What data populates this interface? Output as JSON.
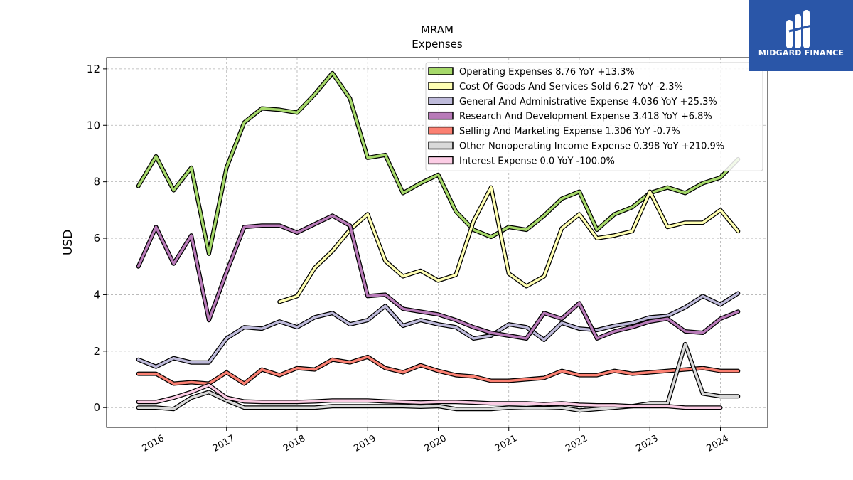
{
  "chart_data": {
    "type": "line",
    "title": "MRAM",
    "subtitle": "Expenses",
    "ylabel": "USD",
    "xlabel": "",
    "ylim": [
      -0.7,
      12.4
    ],
    "xlim": [
      2015.3,
      2024.67
    ],
    "yticks": [
      0,
      2,
      4,
      6,
      8,
      10,
      12
    ],
    "xticks": [
      "2016",
      "2017",
      "2018",
      "2019",
      "2020",
      "2021",
      "2022",
      "2023",
      "2024"
    ],
    "grid": true,
    "legend_position": "top-right",
    "series": [
      {
        "name": "Operating Expenses  8.76 YoY +13.3%",
        "color": "#a6d96a",
        "x": [
          2015.75,
          2016.0,
          2016.25,
          2016.5,
          2016.75,
          2017.0,
          2017.25,
          2017.5,
          2017.75,
          2018.0,
          2018.25,
          2018.5,
          2018.75,
          2019.0,
          2019.25,
          2019.5,
          2019.75,
          2020.0,
          2020.25,
          2020.5,
          2020.75,
          2021.0,
          2021.25,
          2021.5,
          2021.75,
          2022.0,
          2022.25,
          2022.5,
          2022.75,
          2023.0,
          2023.25,
          2023.5,
          2023.75,
          2024.0,
          2024.25
        ],
        "values": [
          7.85,
          8.9,
          7.7,
          8.5,
          5.45,
          8.5,
          10.1,
          10.6,
          10.55,
          10.45,
          11.1,
          11.85,
          10.95,
          8.85,
          8.95,
          7.6,
          7.95,
          8.25,
          6.95,
          6.3,
          6.05,
          6.4,
          6.3,
          6.8,
          7.4,
          7.65,
          6.3,
          6.85,
          7.1,
          7.6,
          7.8,
          7.6,
          7.95,
          8.15,
          8.8
        ]
      },
      {
        "name": "Cost Of Goods And Services Sold  6.27 YoY -2.3%",
        "color": "#ffffb3",
        "x": [
          2017.75,
          2018.0,
          2018.25,
          2018.5,
          2018.75,
          2019.0,
          2019.25,
          2019.5,
          2019.75,
          2020.0,
          2020.25,
          2020.5,
          2020.75,
          2021.0,
          2021.25,
          2021.5,
          2021.75,
          2022.0,
          2022.25,
          2022.5,
          2022.75,
          2023.0,
          2023.25,
          2023.5,
          2023.75,
          2024.0,
          2024.25
        ],
        "values": [
          3.75,
          3.95,
          4.95,
          5.55,
          6.3,
          6.85,
          5.2,
          4.65,
          4.85,
          4.5,
          4.7,
          6.6,
          7.8,
          4.75,
          4.3,
          4.65,
          6.35,
          6.85,
          6.0,
          6.1,
          6.25,
          7.65,
          6.4,
          6.55,
          6.55,
          7.0,
          6.25
        ]
      },
      {
        "name": "General And Administrative Expense  4.036 YoY +25.3%",
        "color": "#bebada",
        "x": [
          2015.75,
          2016.0,
          2016.25,
          2016.5,
          2016.75,
          2017.0,
          2017.25,
          2017.5,
          2017.75,
          2018.0,
          2018.25,
          2018.5,
          2018.75,
          2019.0,
          2019.25,
          2019.5,
          2019.75,
          2020.0,
          2020.25,
          2020.5,
          2020.75,
          2021.0,
          2021.25,
          2021.5,
          2021.75,
          2022.0,
          2022.25,
          2022.5,
          2022.75,
          2023.0,
          2023.25,
          2023.5,
          2023.75,
          2024.0,
          2024.25
        ],
        "values": [
          1.7,
          1.45,
          1.75,
          1.6,
          1.6,
          2.45,
          2.85,
          2.8,
          3.05,
          2.85,
          3.2,
          3.35,
          2.95,
          3.1,
          3.6,
          2.9,
          3.1,
          2.95,
          2.85,
          2.45,
          2.55,
          2.95,
          2.85,
          2.4,
          3.0,
          2.8,
          2.75,
          2.9,
          3.0,
          3.2,
          3.25,
          3.55,
          3.95,
          3.65,
          4.05
        ]
      },
      {
        "name": "Research And Development Expense  3.418 YoY +6.8%",
        "color": "#b87ab8",
        "x": [
          2015.75,
          2016.0,
          2016.25,
          2016.5,
          2016.75,
          2017.0,
          2017.25,
          2017.5,
          2017.75,
          2018.0,
          2018.25,
          2018.5,
          2018.75,
          2019.0,
          2019.25,
          2019.5,
          2019.75,
          2020.0,
          2020.25,
          2020.5,
          2020.75,
          2021.0,
          2021.25,
          2021.5,
          2021.75,
          2022.0,
          2022.25,
          2022.5,
          2022.75,
          2023.0,
          2023.25,
          2023.5,
          2023.75,
          2024.0,
          2024.25
        ],
        "values": [
          5.0,
          6.4,
          5.1,
          6.1,
          3.1,
          4.8,
          6.4,
          6.45,
          6.45,
          6.2,
          6.5,
          6.8,
          6.45,
          3.95,
          4.0,
          3.5,
          3.4,
          3.3,
          3.1,
          2.85,
          2.65,
          2.55,
          2.45,
          3.35,
          3.15,
          3.7,
          2.45,
          2.7,
          2.85,
          3.05,
          3.15,
          2.7,
          2.65,
          3.15,
          3.4
        ]
      },
      {
        "name": "Selling And Marketing Expense  1.306 YoY -0.7%",
        "color": "#fb8072",
        "x": [
          2015.75,
          2016.0,
          2016.25,
          2016.5,
          2016.75,
          2017.0,
          2017.25,
          2017.5,
          2017.75,
          2018.0,
          2018.25,
          2018.5,
          2018.75,
          2019.0,
          2019.25,
          2019.5,
          2019.75,
          2020.0,
          2020.25,
          2020.5,
          2020.75,
          2021.0,
          2021.25,
          2021.5,
          2021.75,
          2022.0,
          2022.25,
          2022.5,
          2022.75,
          2023.0,
          2023.25,
          2023.5,
          2023.75,
          2024.0,
          2024.25
        ],
        "values": [
          1.2,
          1.2,
          0.85,
          0.9,
          0.85,
          1.25,
          0.85,
          1.35,
          1.15,
          1.4,
          1.35,
          1.7,
          1.6,
          1.8,
          1.4,
          1.25,
          1.5,
          1.3,
          1.15,
          1.1,
          0.95,
          0.95,
          1.0,
          1.05,
          1.3,
          1.15,
          1.15,
          1.3,
          1.2,
          1.25,
          1.3,
          1.35,
          1.4,
          1.3,
          1.3
        ]
      },
      {
        "name": "Other Nonoperating Income Expense  0.398 YoY +210.9%",
        "color": "#d9d9d9",
        "x": [
          2015.75,
          2016.0,
          2016.25,
          2016.5,
          2016.75,
          2017.0,
          2017.25,
          2017.5,
          2017.75,
          2018.0,
          2018.25,
          2018.5,
          2018.75,
          2019.0,
          2019.25,
          2019.5,
          2019.75,
          2020.0,
          2020.25,
          2020.5,
          2020.75,
          2021.0,
          2021.25,
          2021.5,
          2021.75,
          2022.0,
          2022.25,
          2022.5,
          2022.75,
          2023.0,
          2023.25,
          2023.5,
          2023.75,
          2024.0,
          2024.25
        ],
        "values": [
          0.0,
          0.0,
          -0.05,
          0.35,
          0.55,
          0.25,
          0.0,
          0.0,
          0.0,
          0.0,
          0.0,
          0.05,
          0.05,
          0.05,
          0.05,
          0.05,
          0.03,
          0.05,
          -0.05,
          -0.05,
          -0.05,
          0.0,
          -0.02,
          -0.02,
          0.0,
          -0.1,
          -0.05,
          0.0,
          0.05,
          0.15,
          0.15,
          2.25,
          0.5,
          0.4,
          0.4
        ]
      },
      {
        "name": "Interest Expense  0.0 YoY -100.0%",
        "color": "#fccde5",
        "x": [
          2015.75,
          2016.0,
          2016.25,
          2016.5,
          2016.75,
          2017.0,
          2017.25,
          2017.5,
          2017.75,
          2018.0,
          2018.25,
          2018.5,
          2018.75,
          2019.0,
          2019.25,
          2019.5,
          2019.75,
          2020.0,
          2020.25,
          2020.5,
          2020.75,
          2021.0,
          2021.25,
          2021.5,
          2021.75,
          2022.0,
          2022.25,
          2022.5,
          2022.75,
          2023.0,
          2023.25,
          2023.5,
          2023.75,
          2024.0
        ],
        "values": [
          0.2,
          0.2,
          0.35,
          0.55,
          0.8,
          0.35,
          0.22,
          0.2,
          0.2,
          0.2,
          0.22,
          0.25,
          0.25,
          0.25,
          0.22,
          0.2,
          0.18,
          0.2,
          0.2,
          0.18,
          0.15,
          0.15,
          0.15,
          0.12,
          0.15,
          0.1,
          0.08,
          0.08,
          0.05,
          0.05,
          0.05,
          0.0,
          0.0,
          0.0
        ]
      }
    ]
  },
  "logo": {
    "text": "MIDGARD FINANCE"
  }
}
